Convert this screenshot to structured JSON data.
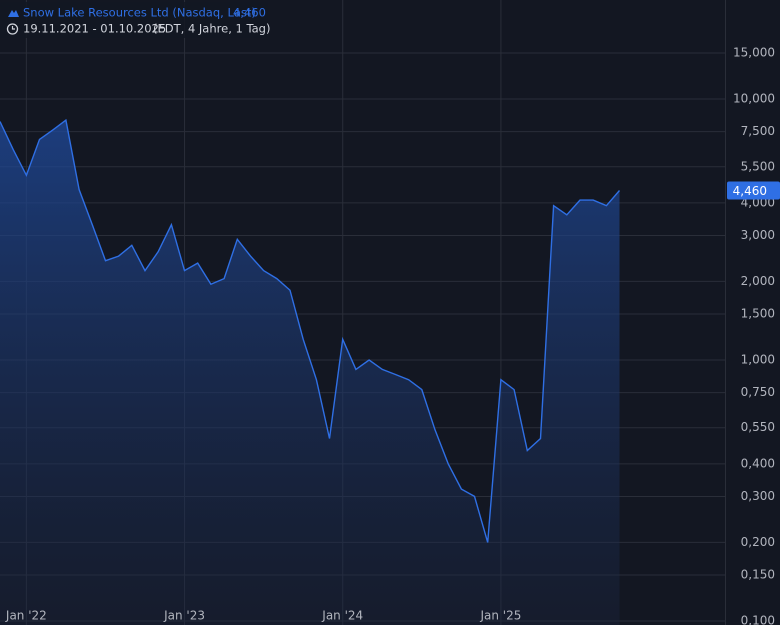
{
  "chart_data": {
    "type": "area",
    "title": "Snow Lake Resources Ltd (Nasdaq, Last)",
    "subtitle": "19.11.2021 - 01.10.2025",
    "subtitle_note": "(EDT, 4 Jahre, 1 Tag)",
    "log_scale": true,
    "grid": true,
    "x": [
      "2021-11",
      "2021-12",
      "2022-01",
      "2022-02",
      "2022-03",
      "2022-04",
      "2022-05",
      "2022-06",
      "2022-07",
      "2022-08",
      "2022-09",
      "2022-10",
      "2022-11",
      "2022-12",
      "2023-01",
      "2023-02",
      "2023-03",
      "2023-04",
      "2023-05",
      "2023-06",
      "2023-07",
      "2023-08",
      "2023-09",
      "2023-10",
      "2023-11",
      "2023-12",
      "2024-01",
      "2024-02",
      "2024-03",
      "2024-04",
      "2024-05",
      "2024-06",
      "2024-07",
      "2024-08",
      "2024-09",
      "2024-10",
      "2024-11",
      "2024-12",
      "2025-01",
      "2025-02",
      "2025-03",
      "2025-04",
      "2025-05",
      "2025-06",
      "2025-07",
      "2025-08",
      "2025-09",
      "2025-10"
    ],
    "series": [
      {
        "name": "Snow Lake Resources Ltd",
        "color": "#2f6fe4",
        "values": [
          8.2,
          6.4,
          5.1,
          7.0,
          7.6,
          8.3,
          4.5,
          3.3,
          2.4,
          2.5,
          2.75,
          2.2,
          2.6,
          3.3,
          2.2,
          2.35,
          1.95,
          2.05,
          2.9,
          2.5,
          2.2,
          2.05,
          1.85,
          1.2,
          0.84,
          0.5,
          1.2,
          0.92,
          1.0,
          0.92,
          0.88,
          0.84,
          0.77,
          0.54,
          0.4,
          0.32,
          0.3,
          0.2,
          0.84,
          0.77,
          0.45,
          0.5,
          3.9,
          3.6,
          4.1,
          4.1,
          3.9,
          4.46
        ],
        "value_labels": [
          null,
          null,
          null,
          null,
          null,
          null,
          null,
          null,
          null,
          null,
          null,
          null,
          null,
          null,
          null,
          null,
          null,
          null,
          null,
          null,
          null,
          null,
          null,
          null,
          null,
          null,
          null,
          null,
          null,
          null,
          null,
          null,
          null,
          null,
          null,
          null,
          null,
          null,
          null,
          null,
          null,
          null,
          null,
          null,
          null,
          null,
          null,
          "4,460"
        ]
      }
    ],
    "xlim": [
      "2021-11",
      "2026-06"
    ],
    "xticks": [
      {
        "value": "2022-01",
        "label": "Jan '22"
      },
      {
        "value": "2023-01",
        "label": "Jan '23"
      },
      {
        "value": "2024-01",
        "label": "Jan '24"
      },
      {
        "value": "2025-01",
        "label": "Jan '25"
      }
    ],
    "ylim": [
      0.0965,
      23.95
    ],
    "yticks": [
      {
        "value": 15,
        "label": "15,000"
      },
      {
        "value": 10,
        "label": "10,000"
      },
      {
        "value": 7.5,
        "label": "7,500"
      },
      {
        "value": 5.5,
        "label": "5,500"
      },
      {
        "value": 4,
        "label": "4,000"
      },
      {
        "value": 3,
        "label": "3,000"
      },
      {
        "value": 2,
        "label": "2,000"
      },
      {
        "value": 1.5,
        "label": "1,500"
      },
      {
        "value": 1,
        "label": "1,000"
      },
      {
        "value": 0.75,
        "label": "0,750"
      },
      {
        "value": 0.55,
        "label": "0,550"
      },
      {
        "value": 0.4,
        "label": "0,400"
      },
      {
        "value": 0.3,
        "label": "0,300"
      },
      {
        "value": 0.2,
        "label": "0,200"
      },
      {
        "value": 0.15,
        "label": "0,150"
      },
      {
        "value": 0.1,
        "label": "0,100"
      }
    ]
  }
}
